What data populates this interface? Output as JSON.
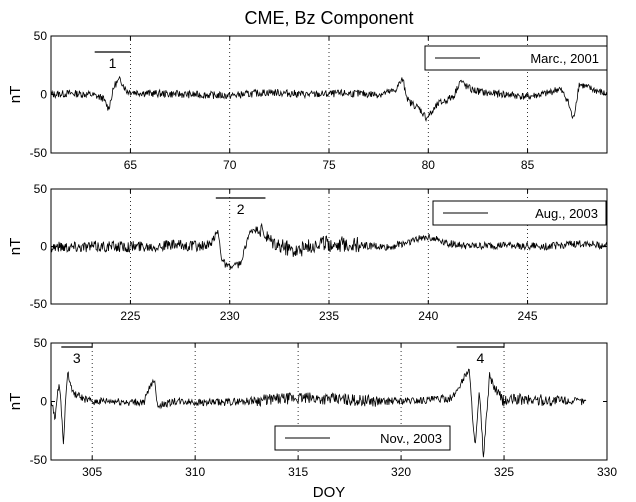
{
  "figure": {
    "title": "CME, Bz Component",
    "xlabel": "DOY"
  },
  "chart_data": [
    {
      "type": "line",
      "ylabel": "nT",
      "xlim": [
        61,
        89
      ],
      "ylim": [
        -50,
        50
      ],
      "xticks": [
        65,
        70,
        75,
        80,
        85
      ],
      "yticks": [
        -50,
        0,
        50
      ],
      "grid": "vertical-dotted",
      "legend": {
        "placement": "top-right",
        "label": "Marc., 2001"
      },
      "events": [
        {
          "label": "1",
          "x_start": 63.2,
          "x_end": 65.0
        }
      ],
      "series": [
        {
          "name": "Marc., 2001",
          "x": [
            61.0,
            62.0,
            63.0,
            63.6,
            63.9,
            64.2,
            64.5,
            64.8,
            65.2,
            66.0,
            68.0,
            70.0,
            72.0,
            74.0,
            76.0,
            77.5,
            78.3,
            78.7,
            79.0,
            79.3,
            79.6,
            79.9,
            80.2,
            80.5,
            80.9,
            81.3,
            81.6,
            81.9,
            82.2,
            83.0,
            84.0,
            85.0,
            86.0,
            86.6,
            87.0,
            87.3,
            87.6,
            88.0,
            89.0
          ],
          "values": [
            0,
            1,
            0,
            -3,
            -12,
            8,
            13,
            3,
            2,
            1,
            0,
            -1,
            2,
            0,
            1,
            0,
            3,
            13,
            -6,
            -9,
            -13,
            -20,
            -15,
            -8,
            -5,
            -1,
            12,
            7,
            4,
            1,
            0,
            -2,
            1,
            5,
            -4,
            -22,
            9,
            6,
            0
          ]
        }
      ]
    },
    {
      "type": "line",
      "ylabel": "nT",
      "xlim": [
        221,
        249
      ],
      "ylim": [
        -50,
        50
      ],
      "xticks": [
        225,
        230,
        235,
        240,
        245
      ],
      "yticks": [
        -50,
        0,
        50
      ],
      "grid": "vertical-dotted",
      "legend": {
        "placement": "top-right",
        "label": "Aug., 2003"
      },
      "events": [
        {
          "label": "2",
          "x_start": 229.3,
          "x_end": 231.8
        }
      ],
      "series": [
        {
          "name": "Aug., 2003",
          "x": [
            221.0,
            223.0,
            225.0,
            227.0,
            229.0,
            229.4,
            229.6,
            229.8,
            230.0,
            230.3,
            230.6,
            230.9,
            231.2,
            231.6,
            232.0,
            232.5,
            233.5,
            234.5,
            236.0,
            238.0,
            240.0,
            241.0,
            242.0,
            244.0,
            246.0,
            248.0,
            249.0
          ],
          "values": [
            0,
            0,
            0,
            1,
            0,
            14,
            -10,
            -16,
            -18,
            -17,
            -14,
            8,
            15,
            13,
            4,
            0,
            -3,
            3,
            2,
            -1,
            9,
            3,
            0,
            1,
            0,
            3,
            0
          ]
        }
      ]
    },
    {
      "type": "line",
      "ylabel": "nT",
      "xlabel": "DOY",
      "xlim": [
        303,
        330
      ],
      "ylim": [
        -50,
        50
      ],
      "xticks": [
        305,
        310,
        315,
        320,
        325,
        330
      ],
      "yticks": [
        -50,
        0,
        50
      ],
      "grid": "vertical-dotted",
      "legend": {
        "placement": "bottom-center",
        "label": "Nov., 2003"
      },
      "events": [
        {
          "label": "3",
          "x_start": 303.5,
          "x_end": 305.0
        },
        {
          "label": "4",
          "x_start": 322.7,
          "x_end": 325.0
        }
      ],
      "series": [
        {
          "name": "Nov., 2003",
          "x": [
            303.0,
            303.2,
            303.4,
            303.6,
            303.8,
            304.0,
            304.2,
            304.6,
            305.0,
            306.0,
            307.5,
            308.0,
            308.2,
            308.6,
            309.0,
            311.0,
            313.0,
            315.0,
            317.0,
            319.0,
            321.0,
            322.5,
            323.3,
            323.6,
            323.8,
            324.0,
            324.3,
            324.6,
            325.0,
            325.5,
            327.0,
            329.0
          ],
          "values": [
            0,
            -14,
            19,
            -34,
            26,
            10,
            6,
            2,
            0,
            0,
            -1,
            20,
            -4,
            -2,
            0,
            -1,
            1,
            3,
            2,
            0,
            1,
            3,
            28,
            -40,
            8,
            -47,
            22,
            9,
            0,
            2,
            1,
            0
          ]
        }
      ]
    }
  ]
}
